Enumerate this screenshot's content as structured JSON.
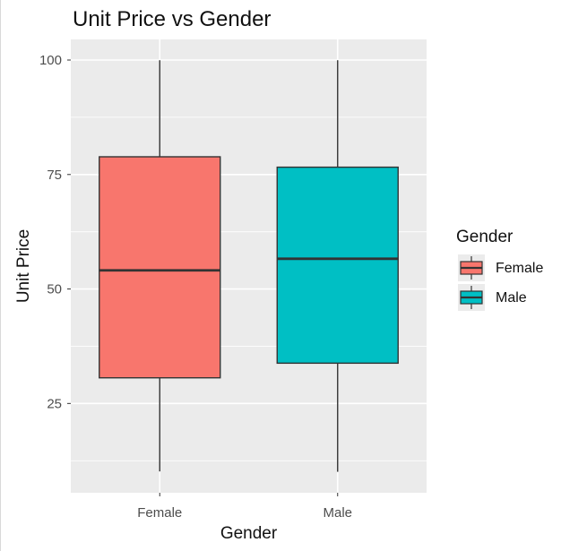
{
  "chart_data": {
    "type": "box",
    "title": "Unit Price vs Gender",
    "xlabel": "Gender",
    "ylabel": "Unit Price",
    "categories": [
      "Female",
      "Male"
    ],
    "series": [
      {
        "name": "Female",
        "color": "#F8766D",
        "min": 10.16,
        "q1": 30.6,
        "median": 54.07,
        "q3": 78.87,
        "max": 99.96
      },
      {
        "name": "Male",
        "color": "#00BFC4",
        "min": 10.08,
        "q1": 33.8,
        "median": 56.6,
        "q3": 76.6,
        "max": 99.96
      }
    ],
    "ylim": [
      5.5,
      104.5
    ],
    "yticks": [
      25,
      50,
      75,
      100
    ],
    "grid": true,
    "legend": {
      "title": "Gender",
      "entries": [
        "Female",
        "Male"
      ],
      "position": "right"
    }
  }
}
